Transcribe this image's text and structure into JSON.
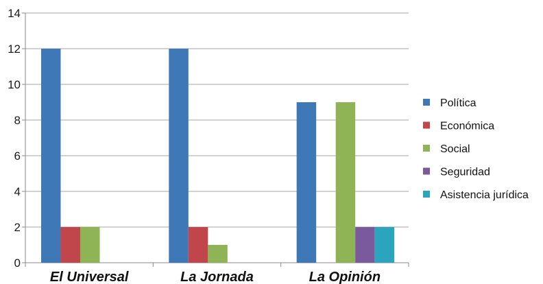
{
  "chart_data": {
    "type": "bar",
    "categories": [
      "El Universal",
      "La Jornada",
      "La Opinión"
    ],
    "series": [
      {
        "name": "Política",
        "color": "#3f78b6",
        "values": [
          12,
          12,
          9
        ]
      },
      {
        "name": "Económica",
        "color": "#c0464b",
        "values": [
          2,
          2,
          null
        ]
      },
      {
        "name": "Social",
        "color": "#8fb455",
        "values": [
          2,
          1,
          9
        ]
      },
      {
        "name": "Seguridad",
        "color": "#7a5a9c",
        "values": [
          null,
          null,
          2
        ]
      },
      {
        "name": "Asistencia jurídica",
        "color": "#2aa5bd",
        "values": [
          null,
          null,
          2
        ]
      }
    ],
    "ylim": [
      0,
      14
    ],
    "yticks": [
      0,
      2,
      4,
      6,
      8,
      10,
      12,
      14
    ],
    "grid": true,
    "legend_position": "right",
    "title": "",
    "xlabel": "",
    "ylabel": ""
  }
}
